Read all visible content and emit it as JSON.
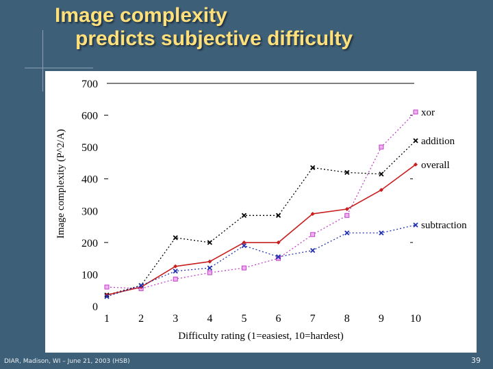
{
  "slide": {
    "title_line1": "Image complexity",
    "title_line2": "predicts subjective difficulty",
    "footer_left": "DIAR, Madison, WI – June 21, 2003 (HSB)",
    "page_number": "39"
  },
  "chart_data": {
    "type": "line",
    "title": "",
    "xlabel": "Difficulty rating (1=easiest, 10=hardest)",
    "ylabel": "Image complexity (P^2/A)",
    "x": [
      1,
      2,
      3,
      4,
      5,
      6,
      7,
      8,
      9,
      10
    ],
    "xlim": [
      1,
      10
    ],
    "ylim": [
      0,
      700
    ],
    "yticks": [
      0,
      100,
      200,
      300,
      400,
      500,
      600,
      700
    ],
    "grid": false,
    "legend": "right, labels at line ends",
    "series": [
      {
        "name": "xor",
        "color": "#c040c8",
        "marker": "square",
        "dash": "dotted",
        "values": [
          60,
          55,
          85,
          105,
          120,
          150,
          225,
          285,
          500,
          610
        ]
      },
      {
        "name": "addition",
        "color": "#000000",
        "marker": "x",
        "dash": "dotted",
        "values": [
          35,
          65,
          215,
          200,
          285,
          285,
          435,
          420,
          415,
          520
        ]
      },
      {
        "name": "overall",
        "color": "#c81e1e",
        "marker": "diamond",
        "dash": "solid",
        "values": [
          35,
          60,
          125,
          140,
          200,
          200,
          290,
          305,
          365,
          445
        ]
      },
      {
        "name": "subtraction",
        "color": "#2030b0",
        "marker": "x",
        "dash": "dotted",
        "values": [
          30,
          65,
          110,
          120,
          190,
          155,
          175,
          230,
          230,
          255
        ]
      }
    ]
  }
}
